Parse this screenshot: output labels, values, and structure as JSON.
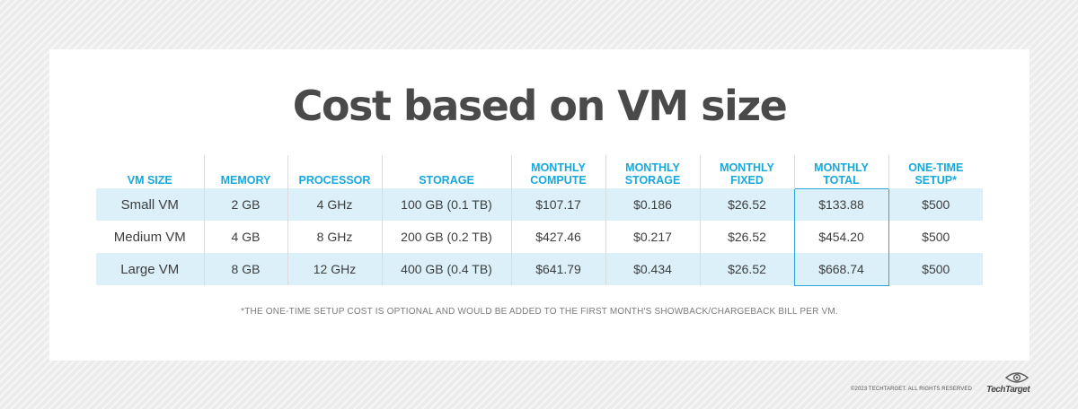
{
  "title": "Cost based on VM size",
  "table": {
    "headers": [
      [
        "VM SIZE"
      ],
      [
        "MEMORY"
      ],
      [
        "PROCESSOR"
      ],
      [
        "STORAGE"
      ],
      [
        "MONTHLY",
        "COMPUTE"
      ],
      [
        "MONTHLY",
        "STORAGE"
      ],
      [
        "MONTHLY",
        "FIXED"
      ],
      [
        "MONTHLY",
        "TOTAL"
      ],
      [
        "ONE-TIME",
        "SETUP*"
      ]
    ],
    "rows": [
      [
        "Small VM",
        "2 GB",
        "4 GHz",
        "100 GB (0.1 TB)",
        "$107.17",
        "$0.186",
        "$26.52",
        "$133.88",
        "$500"
      ],
      [
        "Medium VM",
        "4 GB",
        "8 GHz",
        "200 GB (0.2 TB)",
        "$427.46",
        "$0.217",
        "$26.52",
        "$454.20",
        "$500"
      ],
      [
        "Large VM",
        "8 GB",
        "12 GHz",
        "400 GB (0.4 TB)",
        "$641.79",
        "$0.434",
        "$26.52",
        "$668.74",
        "$500"
      ]
    ]
  },
  "footnote": "*THE ONE-TIME SETUP COST IS OPTIONAL AND WOULD BE ADDED TO THE FIRST MONTH'S SHOWBACK/CHARGEBACK BILL PER VM.",
  "copyright": "©2023 TECHTARGET. ALL RIGHTS RESERVED",
  "logo_text": "TechTarget",
  "colors": {
    "header_text": "#17a9dc",
    "row_shade": "#dcf0fa",
    "highlight_border": "#2ba6d6",
    "title_text": "#4a4a4a"
  }
}
